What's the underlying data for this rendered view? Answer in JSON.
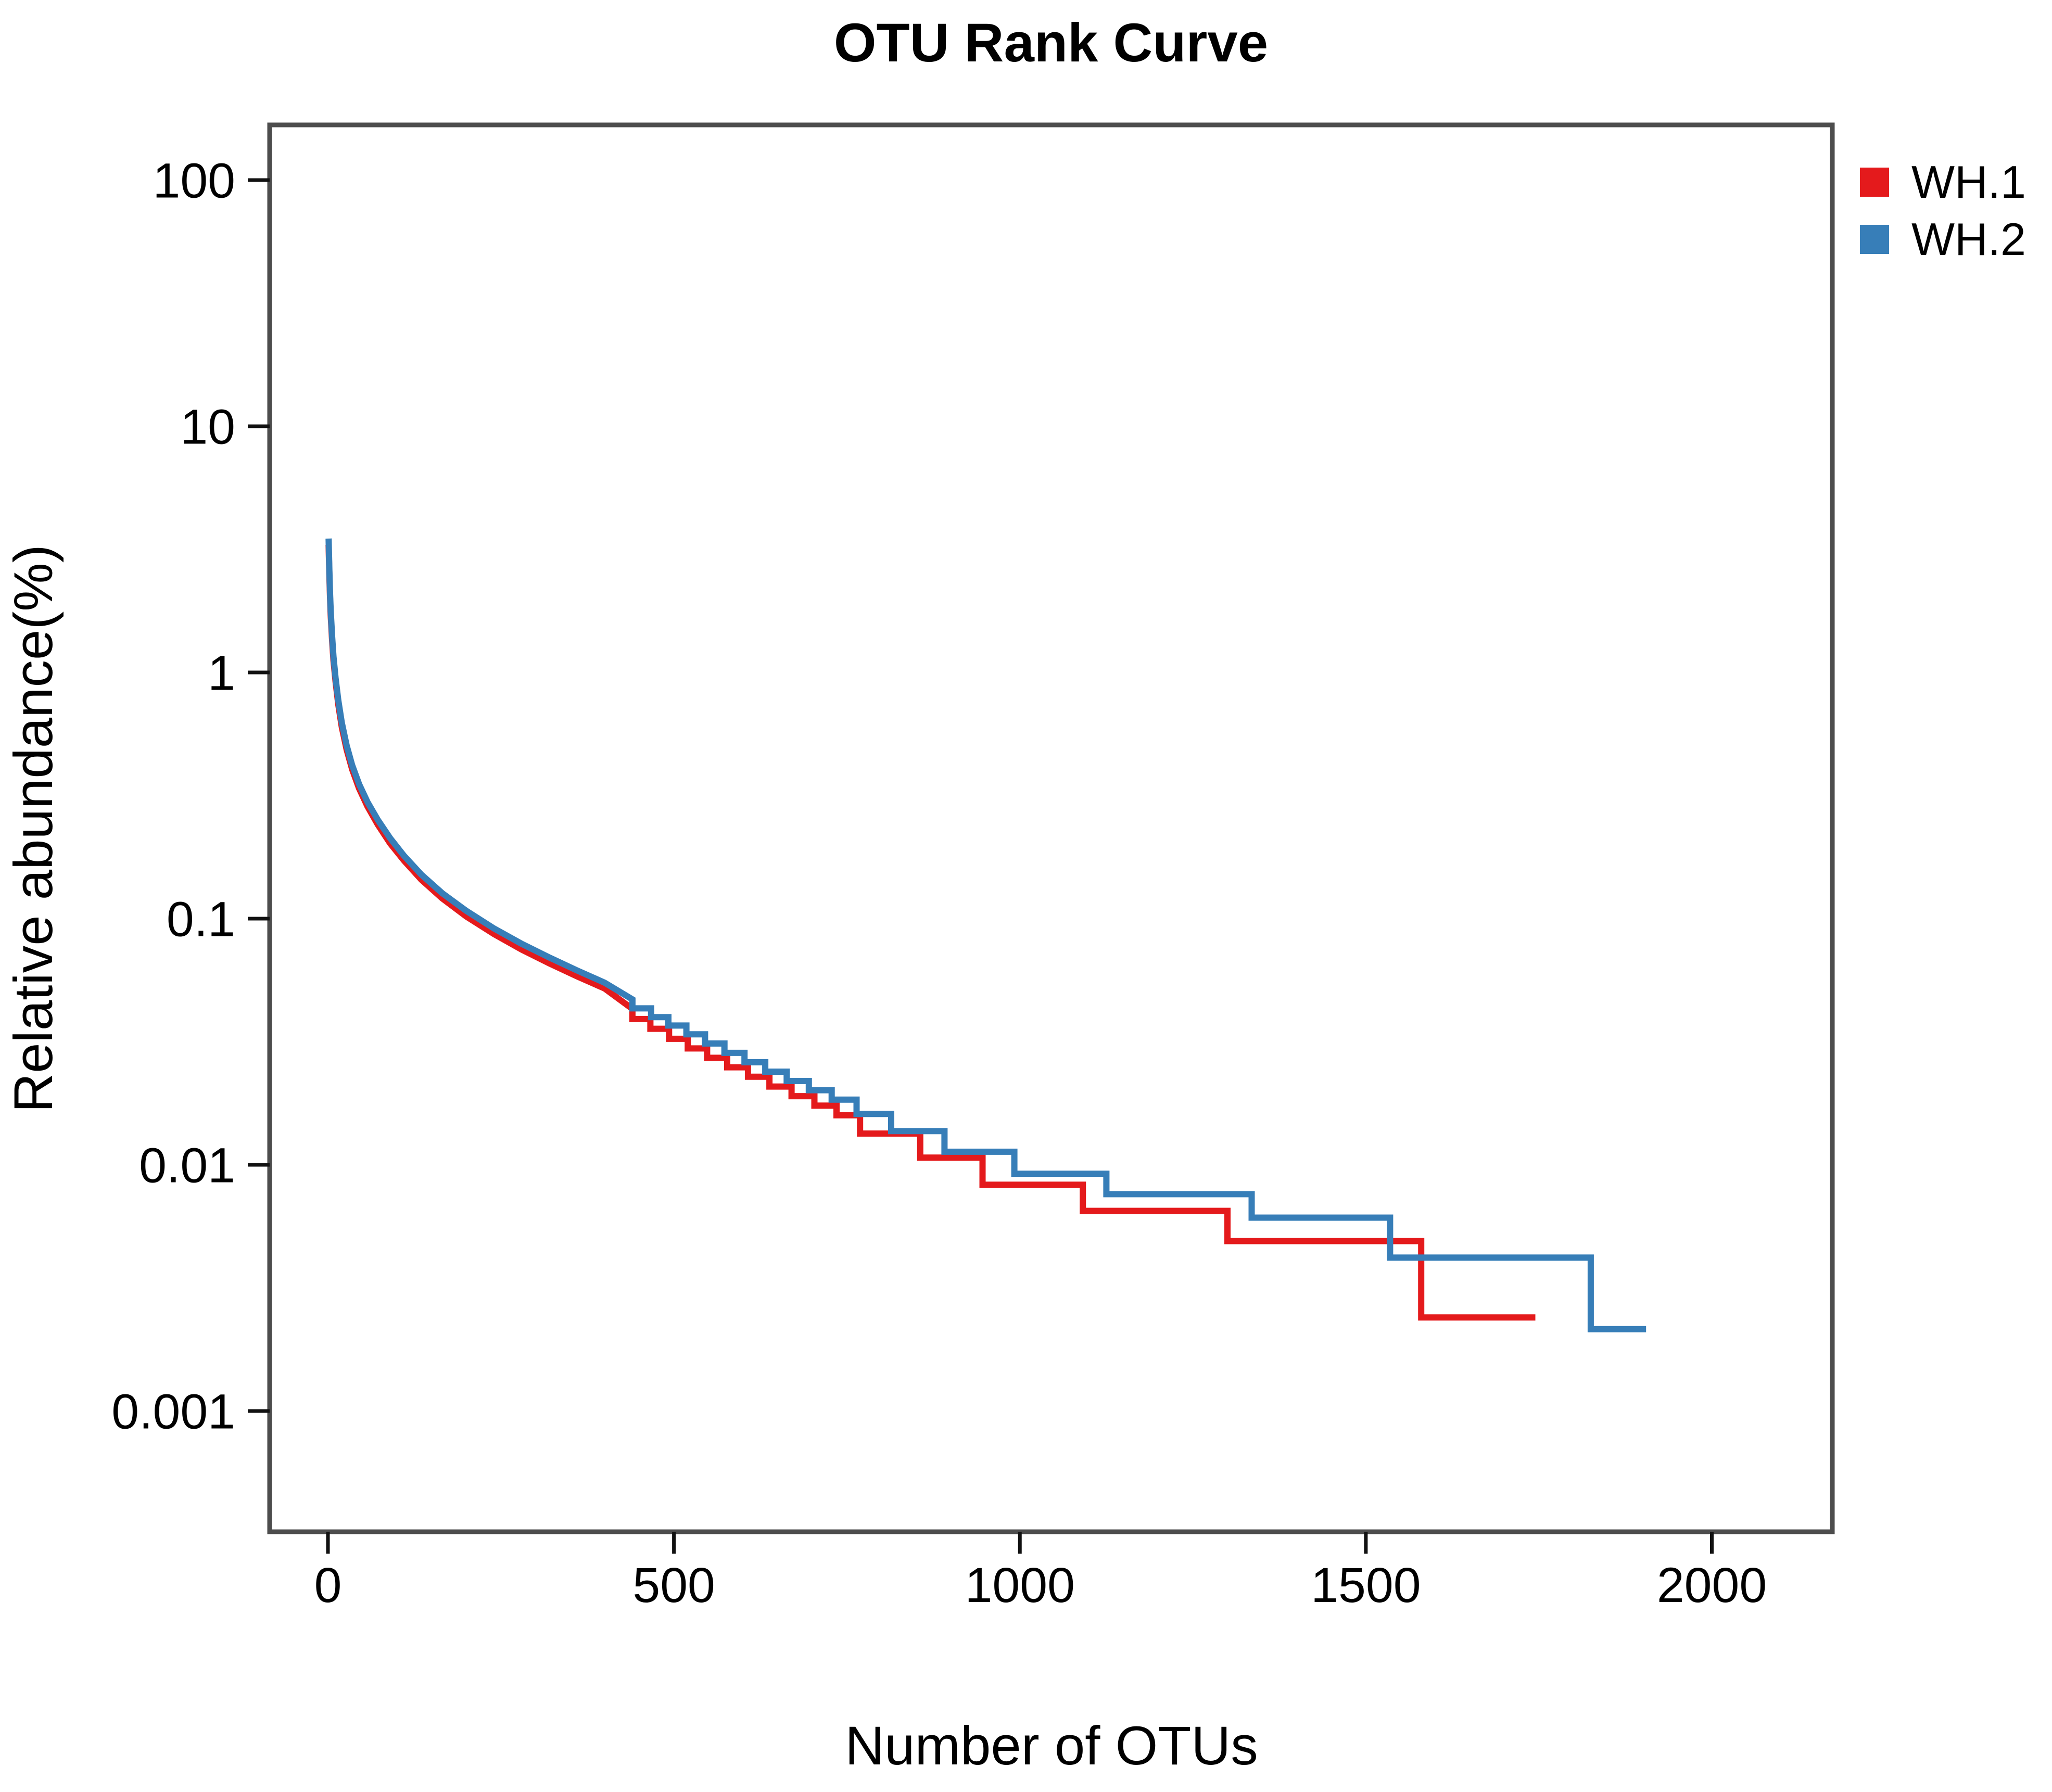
{
  "title": "OTU Rank Curve",
  "x_axis": {
    "label": "Number of OTUs",
    "tick_labels": [
      "0",
      "500",
      "1000",
      "1500",
      "2000"
    ]
  },
  "y_axis": {
    "label": "Relative abundance(%)",
    "tick_labels": [
      "100",
      "10",
      "1",
      "0.1",
      "0.01",
      "0.001"
    ],
    "scale": "log"
  },
  "colors": {
    "wh1": "#e41a1c",
    "wh2": "#377eb8",
    "plot_border": "#4d4d4d",
    "tick": "#111111",
    "background": "#ffffff"
  },
  "chart_data": {
    "type": "line",
    "title": "OTU Rank Curve",
    "xlabel": "Number of OTUs",
    "ylabel": "Relative abundance(%)",
    "x_ticks": [
      0,
      500,
      1000,
      1500,
      2000
    ],
    "y_ticks": [
      100,
      10,
      1,
      0.1,
      0.01,
      0.001
    ],
    "xlim": [
      -85,
      2175
    ],
    "ylim_log": [
      0.00032,
      167
    ],
    "grid": false,
    "legend_position": "top-right-outside",
    "series": [
      {
        "name": "WH.1",
        "color": "#e41a1c",
        "head_points": [
          [
            1,
            3.3
          ],
          [
            2,
            2.5
          ],
          [
            3,
            2.02
          ],
          [
            4,
            1.71
          ],
          [
            6,
            1.35
          ],
          [
            8,
            1.12
          ],
          [
            11,
            0.92
          ],
          [
            15,
            0.74
          ],
          [
            20,
            0.6
          ],
          [
            27,
            0.486
          ],
          [
            35,
            0.404
          ],
          [
            45,
            0.338
          ],
          [
            57,
            0.286
          ],
          [
            72,
            0.241
          ],
          [
            90,
            0.202
          ],
          [
            110,
            0.172
          ],
          [
            135,
            0.144
          ],
          [
            165,
            0.121
          ],
          [
            200,
            0.102
          ],
          [
            240,
            0.0866
          ],
          [
            280,
            0.0749
          ],
          [
            320,
            0.0658
          ],
          [
            360,
            0.0583
          ],
          [
            400,
            0.052
          ],
          [
            440,
            0.043
          ]
        ],
        "step_runs": [
          [
            440,
            0.0391
          ],
          [
            466,
            0.0357
          ],
          [
            493,
            0.0325
          ],
          [
            520,
            0.0297
          ],
          [
            548,
            0.0272
          ],
          [
            577,
            0.0249
          ],
          [
            607,
            0.0228
          ],
          [
            638,
            0.0208
          ],
          [
            670,
            0.019
          ],
          [
            703,
            0.0174
          ],
          [
            735,
            0.0159
          ],
          [
            769,
            0.0134
          ],
          [
            856,
            0.0107
          ],
          [
            946,
            0.0083
          ],
          [
            1091,
            0.0065
          ],
          [
            1300,
            0.0049
          ],
          [
            1580,
            0.0024
          ]
        ],
        "end_rank": 1745
      },
      {
        "name": "WH.2",
        "color": "#377eb8",
        "head_points": [
          [
            1,
            3.5
          ],
          [
            2,
            2.6
          ],
          [
            3,
            2.1
          ],
          [
            4,
            1.78
          ],
          [
            6,
            1.4
          ],
          [
            8,
            1.16
          ],
          [
            11,
            0.95
          ],
          [
            15,
            0.77
          ],
          [
            20,
            0.625
          ],
          [
            27,
            0.505
          ],
          [
            35,
            0.42
          ],
          [
            45,
            0.352
          ],
          [
            57,
            0.298
          ],
          [
            72,
            0.252
          ],
          [
            90,
            0.212
          ],
          [
            110,
            0.18
          ],
          [
            135,
            0.151
          ],
          [
            165,
            0.127
          ],
          [
            200,
            0.1075
          ],
          [
            240,
            0.0912
          ],
          [
            280,
            0.079
          ],
          [
            320,
            0.0695
          ],
          [
            360,
            0.0616
          ],
          [
            400,
            0.0549
          ],
          [
            440,
            0.047
          ]
        ],
        "step_runs": [
          [
            440,
            0.0432
          ],
          [
            467,
            0.0398
          ],
          [
            492,
            0.0368
          ],
          [
            518,
            0.0339
          ],
          [
            545,
            0.0311
          ],
          [
            573,
            0.0285
          ],
          [
            602,
            0.0261
          ],
          [
            632,
            0.0239
          ],
          [
            663,
            0.0219
          ],
          [
            695,
            0.0201
          ],
          [
            728,
            0.0184
          ],
          [
            764,
            0.0161
          ],
          [
            814,
            0.0137
          ],
          [
            891,
            0.0113
          ],
          [
            992,
            0.0092
          ],
          [
            1125,
            0.0076
          ],
          [
            1335,
            0.0061
          ],
          [
            1535,
            0.0042
          ],
          [
            1825,
            0.00215
          ]
        ],
        "end_rank": 1905
      }
    ]
  }
}
